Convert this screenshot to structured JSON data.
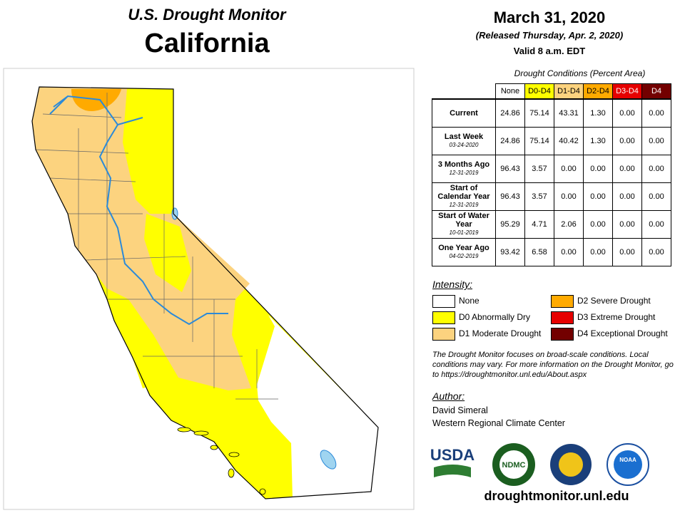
{
  "header": {
    "title": "U.S. Drought Monitor",
    "state": "California",
    "date": "March 31, 2020",
    "released": "(Released Thursday, Apr. 2, 2020)",
    "valid": "Valid 8 a.m. EDT"
  },
  "table": {
    "caption": "Drought Conditions (Percent Area)",
    "columns": [
      "None",
      "D0-D4",
      "D1-D4",
      "D2-D4",
      "D3-D4",
      "D4"
    ],
    "rows": [
      {
        "label": "Current",
        "values": [
          "24.86",
          "75.14",
          "43.31",
          "1.30",
          "0.00",
          "0.00"
        ]
      },
      {
        "label": "Last Week",
        "date": "03-24-2020",
        "values": [
          "24.86",
          "75.14",
          "40.42",
          "1.30",
          "0.00",
          "0.00"
        ]
      },
      {
        "label": "3 Months Ago",
        "date": "12-31-2019",
        "values": [
          "96.43",
          "3.57",
          "0.00",
          "0.00",
          "0.00",
          "0.00"
        ]
      },
      {
        "label": "Start of Calendar Year",
        "date": "12-31-2019",
        "values": [
          "96.43",
          "3.57",
          "0.00",
          "0.00",
          "0.00",
          "0.00"
        ]
      },
      {
        "label": "Start of Water Year",
        "date": "10-01-2019",
        "values": [
          "95.29",
          "4.71",
          "2.06",
          "0.00",
          "0.00",
          "0.00"
        ]
      },
      {
        "label": "One Year Ago",
        "date": "04-02-2019",
        "values": [
          "93.42",
          "6.58",
          "0.00",
          "0.00",
          "0.00",
          "0.00"
        ]
      }
    ]
  },
  "legend": {
    "title": "Intensity:",
    "items": [
      "None",
      "D0 Abnormally Dry",
      "D1 Moderate Drought",
      "D2 Severe Drought",
      "D3 Extreme Drought",
      "D4 Exceptional Drought"
    ]
  },
  "note": "The Drought Monitor focuses on broad-scale conditions. Local conditions may vary. For more information on the Drought Monitor, go to https://droughtmonitor.unl.edu/About.aspx",
  "author": {
    "title": "Author:",
    "name": "David Simeral",
    "org": "Western Regional Climate Center"
  },
  "logos": [
    "USDA",
    "NDMC",
    "NOAA"
  ],
  "url": "droughtmonitor.unl.edu"
}
